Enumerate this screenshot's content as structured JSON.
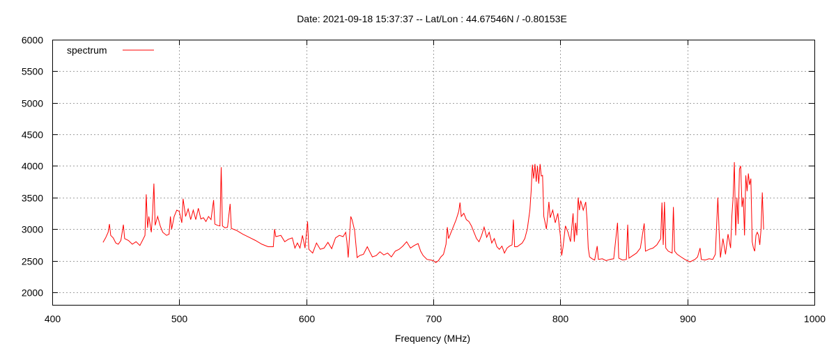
{
  "chart_data": {
    "type": "line",
    "title": "Date: 2021-09-18 15:37:37  --  Lat/Lon : 44.67546N / -0.80153E",
    "xlabel": "Frequency (MHz)",
    "ylabel": "",
    "xlim": [
      400,
      1000
    ],
    "ylim": [
      1800,
      6000
    ],
    "xticks": [
      400,
      500,
      600,
      700,
      800,
      900,
      1000
    ],
    "yticks": [
      2000,
      2500,
      3000,
      3500,
      4000,
      4500,
      5000,
      5500,
      6000
    ],
    "grid": true,
    "legend_position": "top-left",
    "series": [
      {
        "name": "spectrum",
        "color": "#ff0000",
        "points": [
          [
            440,
            2790
          ],
          [
            442,
            2860
          ],
          [
            444,
            2950
          ],
          [
            445,
            3080
          ],
          [
            446,
            2900
          ],
          [
            448,
            2860
          ],
          [
            450,
            2780
          ],
          [
            452,
            2760
          ],
          [
            454,
            2820
          ],
          [
            456,
            3070
          ],
          [
            457,
            2850
          ],
          [
            460,
            2820
          ],
          [
            463,
            2760
          ],
          [
            466,
            2800
          ],
          [
            469,
            2740
          ],
          [
            471,
            2820
          ],
          [
            473,
            2900
          ],
          [
            474,
            3550
          ],
          [
            475,
            3020
          ],
          [
            476,
            3200
          ],
          [
            478,
            2950
          ],
          [
            479,
            3250
          ],
          [
            480,
            3720
          ],
          [
            481,
            3060
          ],
          [
            483,
            3200
          ],
          [
            485,
            3050
          ],
          [
            487,
            2950
          ],
          [
            490,
            2900
          ],
          [
            492,
            2920
          ],
          [
            493,
            3200
          ],
          [
            494,
            3000
          ],
          [
            496,
            3200
          ],
          [
            498,
            3300
          ],
          [
            500,
            3280
          ],
          [
            502,
            3100
          ],
          [
            503,
            3480
          ],
          [
            505,
            3200
          ],
          [
            507,
            3320
          ],
          [
            509,
            3150
          ],
          [
            511,
            3300
          ],
          [
            513,
            3150
          ],
          [
            515,
            3330
          ],
          [
            517,
            3160
          ],
          [
            519,
            3180
          ],
          [
            521,
            3120
          ],
          [
            523,
            3200
          ],
          [
            525,
            3150
          ],
          [
            527,
            3460
          ],
          [
            528,
            3080
          ],
          [
            530,
            3060
          ],
          [
            532,
            3050
          ],
          [
            533,
            3980
          ],
          [
            534,
            3050
          ],
          [
            536,
            3020
          ],
          [
            538,
            3030
          ],
          [
            540,
            3400
          ],
          [
            541,
            3010
          ],
          [
            545,
            2980
          ],
          [
            550,
            2920
          ],
          [
            555,
            2870
          ],
          [
            560,
            2820
          ],
          [
            565,
            2760
          ],
          [
            570,
            2720
          ],
          [
            574,
            2720
          ],
          [
            575,
            3000
          ],
          [
            576,
            2880
          ],
          [
            580,
            2900
          ],
          [
            583,
            2800
          ],
          [
            586,
            2840
          ],
          [
            589,
            2860
          ],
          [
            591,
            2700
          ],
          [
            593,
            2780
          ],
          [
            595,
            2700
          ],
          [
            597,
            2900
          ],
          [
            599,
            2700
          ],
          [
            601,
            3120
          ],
          [
            602,
            2680
          ],
          [
            605,
            2620
          ],
          [
            608,
            2780
          ],
          [
            611,
            2680
          ],
          [
            614,
            2700
          ],
          [
            617,
            2790
          ],
          [
            620,
            2690
          ],
          [
            623,
            2860
          ],
          [
            626,
            2900
          ],
          [
            629,
            2880
          ],
          [
            631,
            2950
          ],
          [
            632,
            2800
          ],
          [
            633,
            2550
          ],
          [
            634,
            2880
          ],
          [
            635,
            3200
          ],
          [
            636,
            3150
          ],
          [
            638,
            2980
          ],
          [
            640,
            2550
          ],
          [
            642,
            2580
          ],
          [
            645,
            2600
          ],
          [
            648,
            2720
          ],
          [
            650,
            2640
          ],
          [
            652,
            2560
          ],
          [
            655,
            2580
          ],
          [
            658,
            2640
          ],
          [
            661,
            2590
          ],
          [
            664,
            2620
          ],
          [
            667,
            2560
          ],
          [
            670,
            2650
          ],
          [
            673,
            2680
          ],
          [
            676,
            2730
          ],
          [
            679,
            2800
          ],
          [
            682,
            2700
          ],
          [
            685,
            2740
          ],
          [
            688,
            2770
          ],
          [
            690,
            2650
          ],
          [
            692,
            2580
          ],
          [
            695,
            2520
          ],
          [
            698,
            2510
          ],
          [
            700,
            2500
          ],
          [
            702,
            2470
          ],
          [
            704,
            2500
          ],
          [
            706,
            2560
          ],
          [
            708,
            2600
          ],
          [
            710,
            2760
          ],
          [
            711,
            3030
          ],
          [
            712,
            2850
          ],
          [
            714,
            2950
          ],
          [
            716,
            3050
          ],
          [
            718,
            3150
          ],
          [
            720,
            3280
          ],
          [
            721,
            3420
          ],
          [
            722,
            3200
          ],
          [
            724,
            3250
          ],
          [
            726,
            3150
          ],
          [
            728,
            3120
          ],
          [
            730,
            3050
          ],
          [
            732,
            2950
          ],
          [
            734,
            2850
          ],
          [
            736,
            2800
          ],
          [
            738,
            2900
          ],
          [
            740,
            3030
          ],
          [
            742,
            2870
          ],
          [
            744,
            2950
          ],
          [
            746,
            2780
          ],
          [
            748,
            2850
          ],
          [
            750,
            2720
          ],
          [
            752,
            2680
          ],
          [
            754,
            2730
          ],
          [
            756,
            2620
          ],
          [
            758,
            2700
          ],
          [
            760,
            2730
          ],
          [
            762,
            2750
          ],
          [
            763,
            3150
          ],
          [
            764,
            2720
          ],
          [
            766,
            2720
          ],
          [
            768,
            2750
          ],
          [
            770,
            2780
          ],
          [
            772,
            2850
          ],
          [
            774,
            3000
          ],
          [
            776,
            3300
          ],
          [
            777,
            3600
          ],
          [
            778,
            4020
          ],
          [
            779,
            3800
          ],
          [
            780,
            4030
          ],
          [
            781,
            3750
          ],
          [
            782,
            4000
          ],
          [
            783,
            3720
          ],
          [
            784,
            4030
          ],
          [
            785,
            3840
          ],
          [
            786,
            3850
          ],
          [
            787,
            3200
          ],
          [
            788,
            3100
          ],
          [
            789,
            3000
          ],
          [
            790,
            3200
          ],
          [
            791,
            3430
          ],
          [
            792,
            3180
          ],
          [
            794,
            3300
          ],
          [
            796,
            3100
          ],
          [
            798,
            3250
          ],
          [
            800,
            2900
          ],
          [
            801,
            2580
          ],
          [
            802,
            2700
          ],
          [
            804,
            3050
          ],
          [
            806,
            2950
          ],
          [
            808,
            2800
          ],
          [
            810,
            3250
          ],
          [
            811,
            2800
          ],
          [
            812,
            3100
          ],
          [
            813,
            2900
          ],
          [
            814,
            3500
          ],
          [
            815,
            3300
          ],
          [
            816,
            3450
          ],
          [
            818,
            3300
          ],
          [
            820,
            3430
          ],
          [
            821,
            3150
          ],
          [
            822,
            2700
          ],
          [
            823,
            2560
          ],
          [
            825,
            2530
          ],
          [
            827,
            2510
          ],
          [
            829,
            2730
          ],
          [
            830,
            2520
          ],
          [
            833,
            2530
          ],
          [
            836,
            2500
          ],
          [
            839,
            2520
          ],
          [
            842,
            2530
          ],
          [
            845,
            3100
          ],
          [
            846,
            2540
          ],
          [
            849,
            2510
          ],
          [
            852,
            2520
          ],
          [
            853,
            3070
          ],
          [
            854,
            2540
          ],
          [
            857,
            2580
          ],
          [
            860,
            2620
          ],
          [
            863,
            2700
          ],
          [
            866,
            3090
          ],
          [
            867,
            2650
          ],
          [
            870,
            2680
          ],
          [
            873,
            2700
          ],
          [
            876,
            2750
          ],
          [
            879,
            2850
          ],
          [
            880,
            3420
          ],
          [
            881,
            2750
          ],
          [
            882,
            3430
          ],
          [
            883,
            2700
          ],
          [
            885,
            2650
          ],
          [
            888,
            2620
          ],
          [
            889,
            3350
          ],
          [
            890,
            2650
          ],
          [
            892,
            2600
          ],
          [
            895,
            2560
          ],
          [
            898,
            2520
          ],
          [
            900,
            2500
          ],
          [
            902,
            2480
          ],
          [
            904,
            2500
          ],
          [
            906,
            2520
          ],
          [
            908,
            2560
          ],
          [
            910,
            2700
          ],
          [
            911,
            2520
          ],
          [
            914,
            2510
          ],
          [
            917,
            2530
          ],
          [
            920,
            2520
          ],
          [
            922,
            2600
          ],
          [
            924,
            3500
          ],
          [
            925,
            2950
          ],
          [
            926,
            2550
          ],
          [
            928,
            2850
          ],
          [
            930,
            2600
          ],
          [
            932,
            2920
          ],
          [
            934,
            2700
          ],
          [
            935,
            3200
          ],
          [
            936,
            3500
          ],
          [
            937,
            4060
          ],
          [
            938,
            2900
          ],
          [
            939,
            3500
          ],
          [
            940,
            3080
          ],
          [
            941,
            3950
          ],
          [
            942,
            4000
          ],
          [
            943,
            3350
          ],
          [
            944,
            3500
          ],
          [
            945,
            2900
          ],
          [
            946,
            3850
          ],
          [
            947,
            3600
          ],
          [
            948,
            3880
          ],
          [
            949,
            3700
          ],
          [
            950,
            3800
          ],
          [
            951,
            2800
          ],
          [
            952,
            2700
          ],
          [
            953,
            2650
          ],
          [
            954,
            2900
          ],
          [
            955,
            2950
          ],
          [
            956,
            2900
          ],
          [
            957,
            2750
          ],
          [
            958,
            3000
          ],
          [
            959,
            3580
          ],
          [
            960,
            3000
          ]
        ]
      }
    ]
  }
}
